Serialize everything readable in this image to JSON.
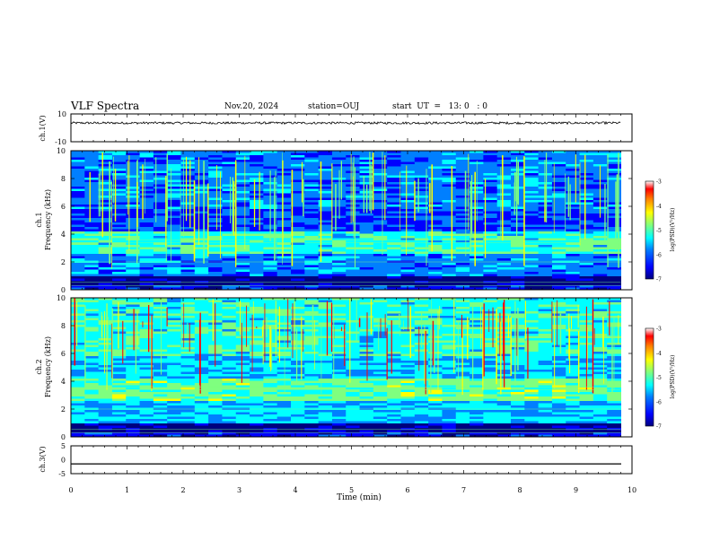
{
  "header": {
    "title": "VLF Spectra",
    "date": "Nov.20, 2024",
    "station": "station=OUJ",
    "start": "start  UT  =   13: 0   : 0"
  },
  "chart_data": [
    {
      "type": "line",
      "panel": "ch1-waveform",
      "ylabel": "ch.1(V)",
      "ylim": [
        -10,
        10
      ],
      "ytick_labels": [
        "10",
        "-10"
      ],
      "xlim": [
        0,
        10
      ],
      "baseline": 3.5,
      "noise_amplitude": 0.8
    },
    {
      "type": "heatmap",
      "panel": "ch1-spectrogram",
      "ylabel": "ch.1\nFrequency (kHz)",
      "ylabel_lines": [
        "ch.1",
        "Frequency (kHz)"
      ],
      "ylim": [
        0,
        10
      ],
      "yticks": [
        0,
        2,
        4,
        6,
        8,
        10
      ],
      "xlim": [
        0,
        10
      ],
      "data_end_min": 9.8,
      "colorbar": {
        "label": "log(PSD)(V²/Hz)",
        "range": [
          -7,
          -3
        ],
        "ticks": [
          -3,
          -4,
          -5,
          -6,
          -7
        ]
      }
    },
    {
      "type": "heatmap",
      "panel": "ch2-spectrogram",
      "ylabel": "ch.2\nFrequency (kHz)",
      "ylabel_lines": [
        "ch.2",
        "Frequency (kHz)"
      ],
      "ylim": [
        0,
        10
      ],
      "yticks": [
        0,
        2,
        4,
        6,
        8,
        10
      ],
      "xlim": [
        0,
        10
      ],
      "data_end_min": 9.8,
      "colorbar": {
        "label": "log(PSD)(V²/Hz)",
        "range": [
          -7,
          -3
        ],
        "ticks": [
          -3,
          -4,
          -5,
          -6,
          -7
        ]
      }
    },
    {
      "type": "line",
      "panel": "ch3-waveform",
      "ylabel": "ch.3(V)",
      "ylim": [
        -5,
        5
      ],
      "yticks": [
        5,
        0,
        -5
      ],
      "ytick_labels": [
        "5",
        "0",
        "-5"
      ],
      "xlim": [
        0,
        10
      ],
      "xticks": [
        0,
        1,
        2,
        3,
        4,
        5,
        6,
        7,
        8,
        9,
        10
      ],
      "xlabel": "Time  (min)",
      "baseline": -1.5
    }
  ],
  "colors": {
    "colormap": [
      "#00007f",
      "#0000ff",
      "#007fff",
      "#00ffff",
      "#7fff7f",
      "#ffff00",
      "#ff7f00",
      "#ff0000",
      "#7f0000"
    ]
  }
}
